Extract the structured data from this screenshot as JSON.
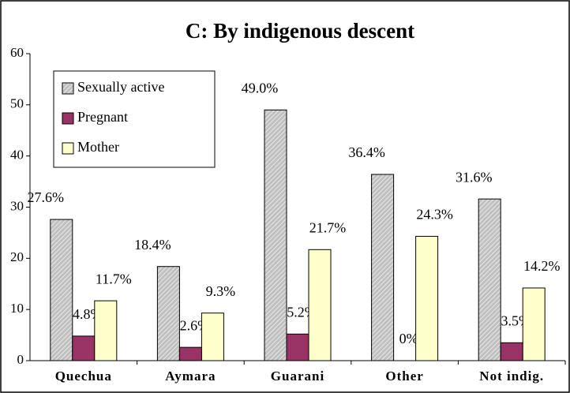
{
  "chart_data": {
    "type": "bar",
    "title": "C: By indigenous descent",
    "categories": [
      "Quechua",
      "Aymara",
      "Guarani",
      "Other",
      "Not indig."
    ],
    "series": [
      {
        "name": "Sexually active",
        "color": "#c0c0c0",
        "hatch": true,
        "values": [
          27.6,
          18.4,
          49.0,
          36.4,
          31.6
        ],
        "value_labels": [
          "27.6%",
          "18.4%",
          "49.0%",
          "36.4%",
          "31.6%"
        ]
      },
      {
        "name": "Pregnant",
        "color": "#993366",
        "values": [
          4.8,
          2.6,
          5.2,
          0,
          3.5
        ],
        "value_labels": [
          "4.8%",
          "2.6%",
          "5.2%",
          "0%",
          "3.5%"
        ]
      },
      {
        "name": "Mother",
        "color": "#ffffcc",
        "values": [
          11.7,
          9.3,
          21.7,
          24.3,
          14.2
        ],
        "value_labels": [
          "11.7%",
          "9.3%",
          "21.7%",
          "24.3%",
          "14.2%"
        ]
      }
    ],
    "ylim": [
      0,
      60
    ],
    "yticks": [
      0,
      10,
      20,
      30,
      40,
      50,
      60
    ],
    "grid": false,
    "legend": "upper left"
  }
}
